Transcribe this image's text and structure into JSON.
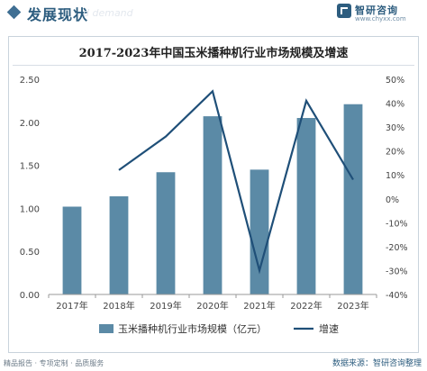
{
  "header": {
    "title": "发展现状",
    "watermark": "d demand"
  },
  "brand": {
    "name": "智研咨询",
    "url": "www.chyxx.com",
    "color": "#2d5d7f"
  },
  "footer": {
    "left_text": "精品报告 · 专项定制 · 品质服务",
    "source": "数据来源：智研咨询整理"
  },
  "chart_data": {
    "type": "bar",
    "title": "2017-2023年中国玉米播种机行业市场规模及增速",
    "categories": [
      "2017年",
      "2018年",
      "2019年",
      "2020年",
      "2021年",
      "2022年",
      "2023年"
    ],
    "series": [
      {
        "name": "玉米播种机行业市场规模（亿元）",
        "type": "bar",
        "axis": "left",
        "color": "#5b8aa6",
        "values": [
          1.02,
          1.14,
          1.42,
          2.07,
          1.45,
          2.05,
          2.21
        ]
      },
      {
        "name": "增速",
        "type": "line",
        "axis": "right",
        "color": "#1f4f78",
        "values": [
          null,
          0.12,
          0.26,
          0.45,
          -0.3,
          0.41,
          0.08
        ]
      }
    ],
    "y_left": {
      "min": 0,
      "max": 2.5,
      "ticks": [
        "0.00",
        "0.50",
        "1.00",
        "1.50",
        "2.00",
        "2.50"
      ]
    },
    "y_right": {
      "min": -0.4,
      "max": 0.5,
      "ticks": [
        "-40%",
        "-30%",
        "-20%",
        "-10%",
        "0%",
        "10%",
        "20%",
        "30%",
        "40%",
        "50%"
      ]
    },
    "grid": false,
    "legend": "bottom"
  }
}
